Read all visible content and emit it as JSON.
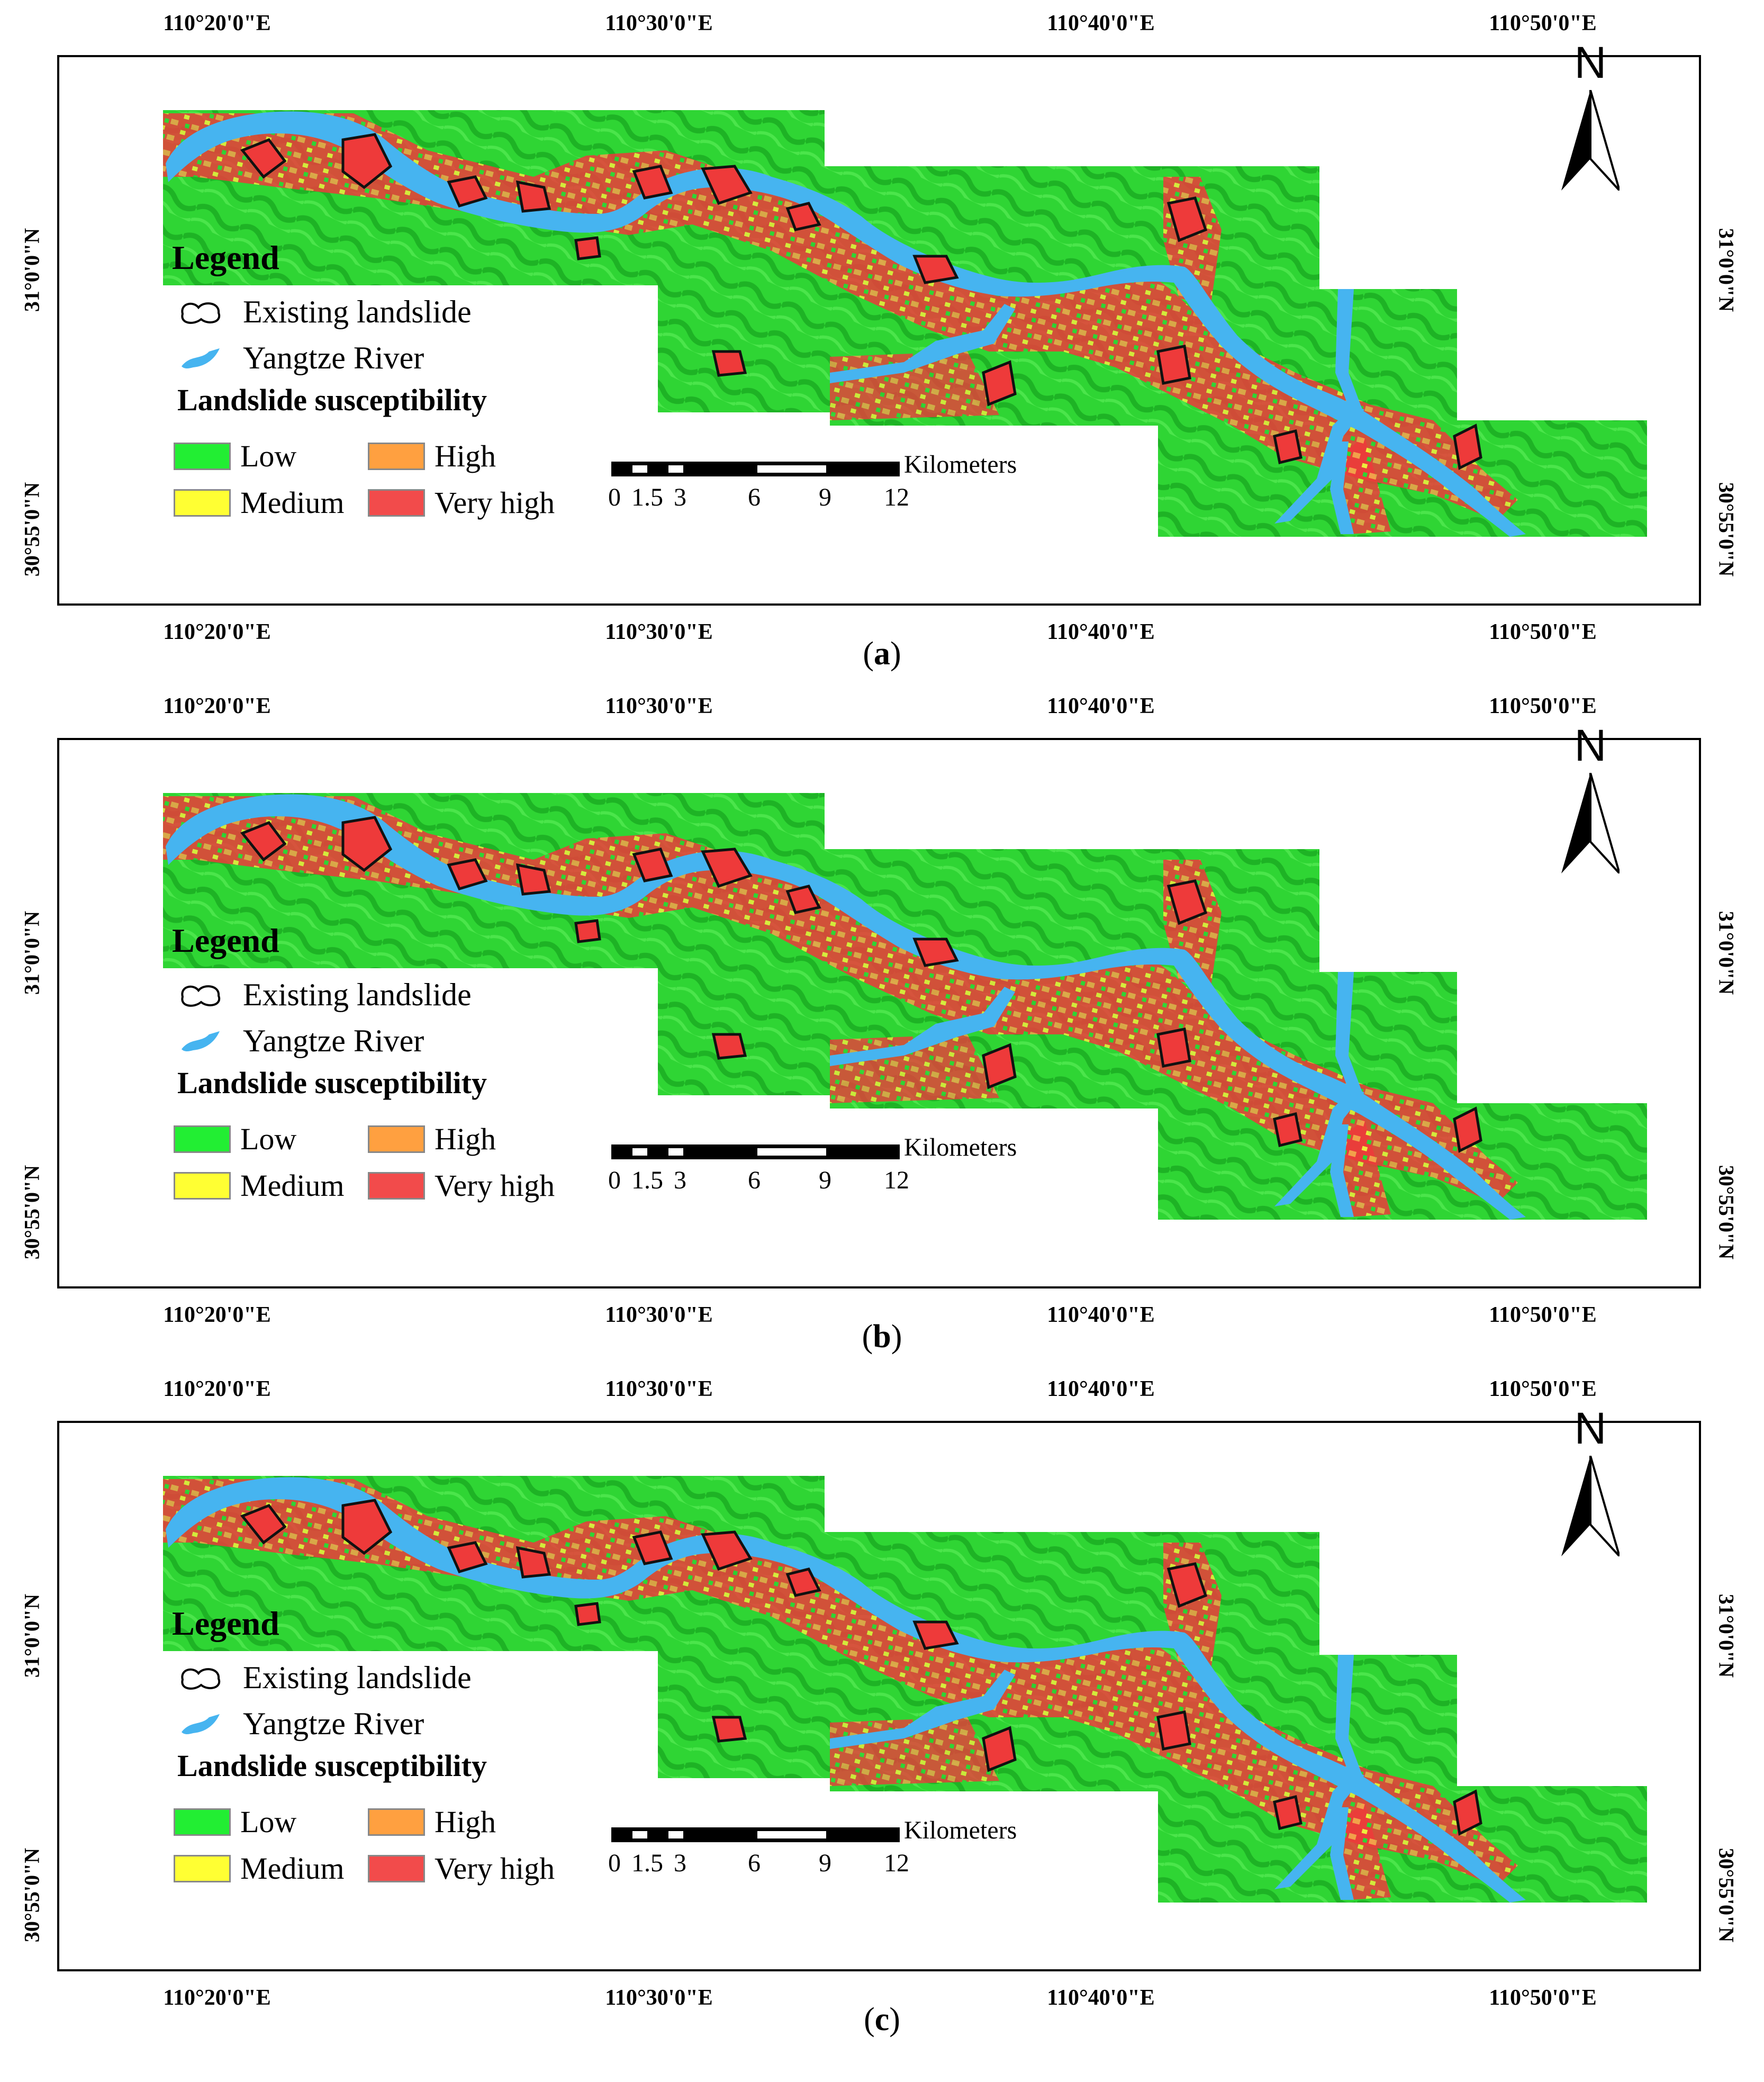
{
  "figure": {
    "panels": [
      {
        "id": "a",
        "caption_open": "(",
        "caption_label": "a",
        "caption_close": ")"
      },
      {
        "id": "b",
        "caption_open": "(",
        "caption_label": "b",
        "caption_close": ")"
      },
      {
        "id": "c",
        "caption_open": "(",
        "caption_label": "c",
        "caption_close": ")"
      }
    ],
    "longitude_labels": [
      "110°20'0\"E",
      "110°30'0\"E",
      "110°40'0\"E",
      "110°50'0\"E"
    ],
    "latitude_labels": [
      "31°0'0\"N",
      "30°55'0\"N"
    ],
    "legend": {
      "title": "Legend",
      "landslide_label": "Existing landslide",
      "river_label": "Yangtze River",
      "susceptibility_title": "Landslide susceptibility",
      "classes": [
        {
          "label": "Low",
          "color": "#22ee33"
        },
        {
          "label": "High",
          "color": "#ffa040"
        },
        {
          "label": "Medium",
          "color": "#ffff33"
        },
        {
          "label": "Very high",
          "color": "#f24b4b"
        }
      ]
    },
    "scale_bar": {
      "unit": "Kilometers",
      "ticks": [
        "0",
        "1.5",
        "3",
        "6",
        "9",
        "12"
      ]
    },
    "north_arrow": {
      "label": "N",
      "icon": "north-arrow-icon"
    },
    "colors": {
      "low": "#2fd534",
      "low_shade": "#17a51f",
      "river": "#46b4f0",
      "very_high": "#ee3a3a",
      "high": "#f6a04a",
      "medium": "#f0ee3c"
    }
  }
}
